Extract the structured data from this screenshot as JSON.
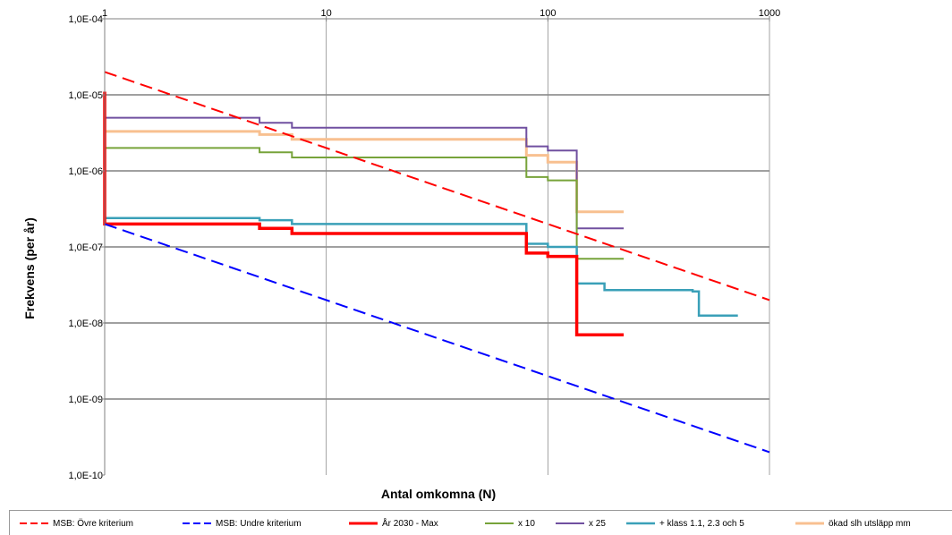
{
  "chart_data": {
    "type": "line",
    "xlabel": "Antal omkomna (N)",
    "ylabel": "Frekvens (per år)",
    "x_scale": "log",
    "y_scale": "log",
    "xlim": [
      1,
      1000
    ],
    "ylim": [
      1e-10,
      0.0001
    ],
    "x_ticks": [
      {
        "value": 1,
        "label": "1"
      },
      {
        "value": 10,
        "label": "10"
      },
      {
        "value": 100,
        "label": "100"
      },
      {
        "value": 1000,
        "label": "1000"
      }
    ],
    "y_ticks": [
      {
        "value": 0.0001,
        "label": "1,0E-04"
      },
      {
        "value": 1e-05,
        "label": "1,0E-05"
      },
      {
        "value": 1e-06,
        "label": "1,0E-06"
      },
      {
        "value": 1e-07,
        "label": "1,0E-07"
      },
      {
        "value": 1e-08,
        "label": "1,0E-08"
      },
      {
        "value": 1e-09,
        "label": "1,0E-09"
      },
      {
        "value": 1e-10,
        "label": "1,0E-10"
      }
    ],
    "grid": "horizontal major lines at 1e-5, 1e-6 and 1e-7; vertical major lines at 10, 100 and 1000",
    "legend_position": "bottom",
    "series": [
      {
        "name": "MSB: Övre kriterium",
        "color": "#ff0000",
        "dash": true,
        "step": false,
        "width": 2,
        "x": [
          1,
          1000
        ],
        "y": [
          2e-05,
          2e-08
        ]
      },
      {
        "name": "MSB: Undre kriterium",
        "color": "#0000ff",
        "dash": true,
        "step": false,
        "width": 2,
        "x": [
          1,
          1000
        ],
        "y": [
          2e-07,
          2e-10
        ]
      },
      {
        "name": "År 2030 - Max",
        "color": "#ff0000",
        "dash": false,
        "step": true,
        "width": 3.5,
        "x": [
          1,
          1,
          5,
          7,
          80,
          100,
          135,
          220
        ],
        "y": [
          1.1e-05,
          2e-07,
          1.75e-07,
          1.5e-07,
          8.3e-08,
          7.5e-08,
          7e-09,
          7e-09
        ]
      },
      {
        "name": "x 10",
        "color": "#77a33a",
        "dash": false,
        "step": true,
        "width": 2,
        "x": [
          1,
          5,
          7,
          80,
          100,
          135,
          220
        ],
        "y": [
          2e-06,
          1.75e-06,
          1.5e-06,
          8.3e-07,
          7.5e-07,
          7e-08,
          7e-08
        ]
      },
      {
        "name": "x 25",
        "color": "#7050a0",
        "dash": false,
        "step": true,
        "width": 2,
        "x": [
          1,
          5,
          7,
          80,
          100,
          135,
          220
        ],
        "y": [
          5e-06,
          4.3e-06,
          3.7e-06,
          2.1e-06,
          1.85e-06,
          1.75e-07,
          1.75e-07
        ]
      },
      {
        "name": "+ klass 1.1, 2.3 och 5",
        "color": "#3aa0b8",
        "dash": false,
        "step": true,
        "width": 2.5,
        "x": [
          1,
          5,
          7,
          80,
          100,
          135,
          180,
          450,
          480,
          720
        ],
        "y": [
          2.4e-07,
          2.25e-07,
          2e-07,
          1.1e-07,
          1e-07,
          3.3e-08,
          2.7e-08,
          2.6e-08,
          1.25e-08,
          1.25e-08
        ]
      },
      {
        "name": "ökad slh utsläpp mm",
        "color": "#f8c090",
        "dash": false,
        "step": true,
        "width": 3,
        "x": [
          1,
          5,
          7,
          80,
          100,
          135,
          220
        ],
        "y": [
          3.3e-06,
          3e-06,
          2.6e-06,
          1.6e-06,
          1.3e-06,
          2.9e-07,
          2.9e-07
        ]
      }
    ]
  }
}
